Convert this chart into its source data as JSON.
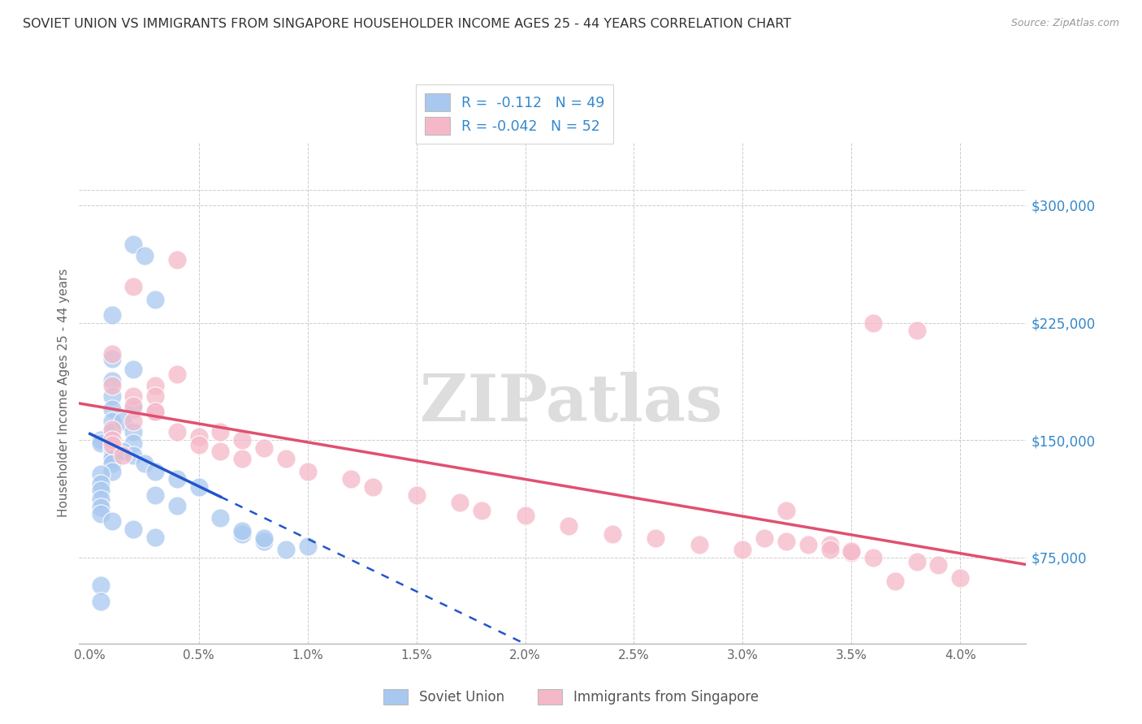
{
  "title": "SOVIET UNION VS IMMIGRANTS FROM SINGAPORE HOUSEHOLDER INCOME AGES 25 - 44 YEARS CORRELATION CHART",
  "source": "Source: ZipAtlas.com",
  "ylabel": "Householder Income Ages 25 - 44 years",
  "ytick_labels": [
    "$75,000",
    "$150,000",
    "$225,000",
    "$300,000"
  ],
  "ytick_vals": [
    75000,
    150000,
    225000,
    300000
  ],
  "xtick_labels": [
    "0.0%",
    "0.5%",
    "1.0%",
    "1.5%",
    "2.0%",
    "2.5%",
    "3.0%",
    "3.5%",
    "4.0%"
  ],
  "xtick_vals": [
    0.0,
    0.005,
    0.01,
    0.015,
    0.02,
    0.025,
    0.03,
    0.035,
    0.04
  ],
  "xlim": [
    -0.0005,
    0.043
  ],
  "ylim": [
    20000,
    340000
  ],
  "legend1_R": "-0.112",
  "legend1_N": "49",
  "legend2_R": "-0.042",
  "legend2_N": "52",
  "blue_color": "#a8c8f0",
  "pink_color": "#f5b8c8",
  "blue_line_color": "#2255cc",
  "pink_line_color": "#e05070",
  "blue_line_solid_end": 0.006,
  "pink_line_solid_end": 0.042,
  "watermark": "ZIPatlas",
  "soviet_x": [
    0.002,
    0.0025,
    0.003,
    0.001,
    0.001,
    0.002,
    0.001,
    0.001,
    0.001,
    0.001,
    0.001,
    0.0005,
    0.0005,
    0.001,
    0.001,
    0.001,
    0.001,
    0.001,
    0.001,
    0.0005,
    0.002,
    0.0015,
    0.002,
    0.002,
    0.0015,
    0.002,
    0.0025,
    0.003,
    0.004,
    0.005,
    0.007,
    0.008,
    0.009,
    0.003,
    0.004,
    0.006,
    0.007,
    0.008,
    0.01,
    0.0005,
    0.0005,
    0.0005,
    0.0005,
    0.0005,
    0.001,
    0.002,
    0.003,
    0.0005,
    0.0005
  ],
  "soviet_y": [
    275000,
    268000,
    240000,
    230000,
    202000,
    195000,
    188000,
    178000,
    170000,
    162000,
    155000,
    150000,
    148000,
    145000,
    143000,
    140000,
    138000,
    135000,
    130000,
    128000,
    170000,
    162000,
    155000,
    148000,
    143000,
    140000,
    135000,
    130000,
    125000,
    120000,
    90000,
    85000,
    80000,
    115000,
    108000,
    100000,
    92000,
    87000,
    82000,
    122000,
    118000,
    112000,
    107000,
    103000,
    98000,
    93000,
    88000,
    57000,
    47000
  ],
  "singapore_x": [
    0.002,
    0.004,
    0.001,
    0.001,
    0.002,
    0.003,
    0.002,
    0.003,
    0.001,
    0.001,
    0.001,
    0.0015,
    0.002,
    0.003,
    0.004,
    0.003,
    0.004,
    0.005,
    0.005,
    0.006,
    0.007,
    0.006,
    0.007,
    0.008,
    0.009,
    0.01,
    0.012,
    0.013,
    0.015,
    0.017,
    0.018,
    0.02,
    0.022,
    0.024,
    0.026,
    0.028,
    0.03,
    0.032,
    0.034,
    0.035,
    0.036,
    0.038,
    0.039,
    0.04,
    0.032,
    0.034,
    0.036,
    0.038,
    0.031,
    0.033,
    0.035,
    0.037
  ],
  "singapore_y": [
    248000,
    265000,
    205000,
    185000,
    178000,
    185000,
    172000,
    168000,
    157000,
    150000,
    147000,
    140000,
    162000,
    178000,
    192000,
    168000,
    155000,
    152000,
    147000,
    143000,
    138000,
    155000,
    150000,
    145000,
    138000,
    130000,
    125000,
    120000,
    115000,
    110000,
    105000,
    102000,
    95000,
    90000,
    87000,
    83000,
    80000,
    105000,
    83000,
    78000,
    225000,
    220000,
    70000,
    62000,
    85000,
    80000,
    75000,
    72000,
    87000,
    83000,
    79000,
    60000
  ]
}
